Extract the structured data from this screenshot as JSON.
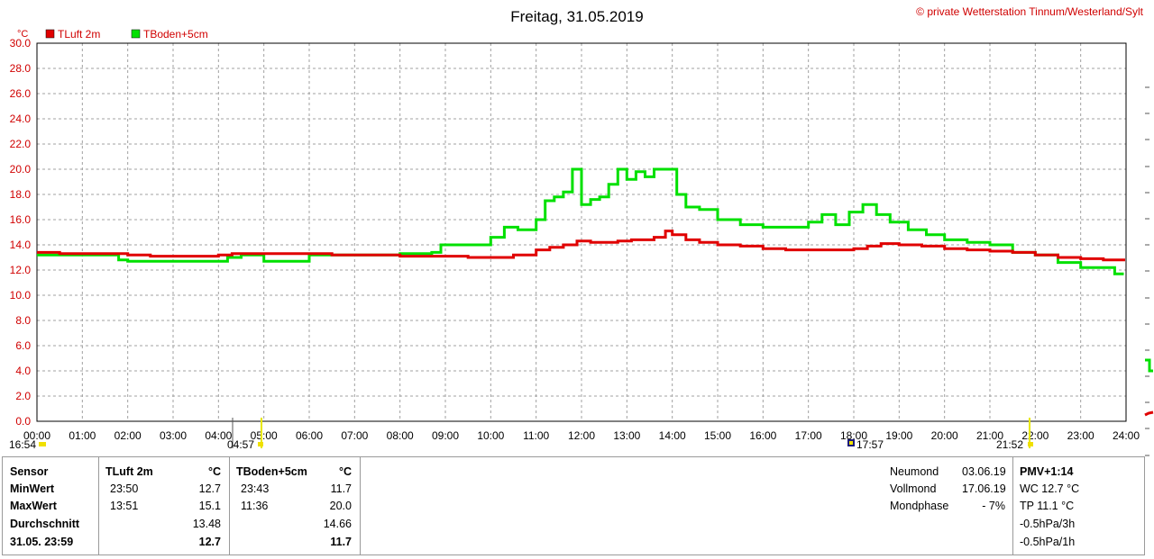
{
  "header": {
    "title": "Freitag, 31.05.2019",
    "copyright": "© private Wetterstation Tinnum/Westerland/Sylt"
  },
  "colors": {
    "series1": "#e00000",
    "series2": "#00e000",
    "axis_text": "#d00000",
    "grid": "#a0a0a0"
  },
  "chart_data": {
    "type": "line",
    "title": "Freitag, 31.05.2019",
    "ylabel": "°C",
    "ylim": [
      0,
      30
    ],
    "xlim": [
      0,
      24
    ],
    "grid": true,
    "legend_position": "top-left",
    "y_ticks": [
      "0.0",
      "2.0",
      "4.0",
      "6.0",
      "8.0",
      "10.0",
      "12.0",
      "14.0",
      "16.0",
      "18.0",
      "20.0",
      "22.0",
      "24.0",
      "26.0",
      "28.0",
      "30.0"
    ],
    "x_ticks": [
      "00:00",
      "01:00",
      "02:00",
      "03:00",
      "04:00",
      "05:00",
      "06:00",
      "07:00",
      "08:00",
      "09:00",
      "10:00",
      "11:00",
      "12:00",
      "13:00",
      "14:00",
      "15:00",
      "16:00",
      "17:00",
      "18:00",
      "19:00",
      "20:00",
      "21:00",
      "22:00",
      "23:00",
      "24:00"
    ],
    "series": [
      {
        "name": "TLuft 2m",
        "x": [
          0,
          0.5,
          1.0,
          1.5,
          2.0,
          2.5,
          3.0,
          3.5,
          4.0,
          4.3,
          4.8,
          5.5,
          6.0,
          6.5,
          7.0,
          7.5,
          8.0,
          8.5,
          9.0,
          9.5,
          10.0,
          10.5,
          11.0,
          11.3,
          11.6,
          11.9,
          12.2,
          12.5,
          12.8,
          13.1,
          13.4,
          13.6,
          13.85,
          14.0,
          14.3,
          14.6,
          15.0,
          15.5,
          16.0,
          16.5,
          17.0,
          17.5,
          18.0,
          18.3,
          18.6,
          19.0,
          19.5,
          20.0,
          20.5,
          21.0,
          21.5,
          22.0,
          22.5,
          23.0,
          23.5,
          23.95
        ],
        "values": [
          13.4,
          13.3,
          13.3,
          13.3,
          13.2,
          13.1,
          13.1,
          13.1,
          13.2,
          13.3,
          13.3,
          13.3,
          13.3,
          13.2,
          13.2,
          13.2,
          13.1,
          13.1,
          13.1,
          13.0,
          13.0,
          13.2,
          13.6,
          13.8,
          14.0,
          14.3,
          14.2,
          14.2,
          14.3,
          14.4,
          14.4,
          14.6,
          15.1,
          14.8,
          14.4,
          14.2,
          14.0,
          13.9,
          13.7,
          13.6,
          13.6,
          13.6,
          13.7,
          13.9,
          14.1,
          14.0,
          13.9,
          13.7,
          13.6,
          13.5,
          13.4,
          13.2,
          13.0,
          12.9,
          12.8,
          12.7
        ]
      },
      {
        "name": "TBoden+5cm",
        "x": [
          0,
          0.5,
          1.0,
          1.5,
          1.8,
          2.0,
          2.5,
          3.0,
          3.5,
          4.0,
          4.2,
          4.5,
          5.0,
          5.5,
          6.0,
          6.5,
          7.0,
          8.0,
          8.7,
          8.9,
          9.5,
          10.0,
          10.3,
          10.6,
          11.0,
          11.2,
          11.4,
          11.6,
          11.8,
          12.0,
          12.2,
          12.4,
          12.6,
          12.8,
          13.0,
          13.2,
          13.4,
          13.6,
          13.85,
          14.1,
          14.3,
          14.6,
          15.0,
          15.5,
          16.0,
          16.5,
          17.0,
          17.3,
          17.6,
          17.9,
          18.2,
          18.5,
          18.8,
          19.2,
          19.6,
          20.0,
          20.5,
          21.0,
          21.5,
          22.0,
          22.5,
          23.0,
          23.5,
          23.75,
          23.95
        ],
        "values": [
          13.2,
          13.2,
          13.2,
          13.2,
          12.8,
          12.7,
          12.7,
          12.7,
          12.7,
          12.7,
          13.0,
          13.2,
          12.7,
          12.7,
          13.2,
          13.2,
          13.2,
          13.3,
          13.4,
          14.0,
          14.0,
          14.6,
          15.4,
          15.2,
          16.0,
          17.5,
          17.8,
          18.2,
          20.0,
          17.2,
          17.6,
          17.8,
          18.8,
          20.0,
          19.2,
          19.8,
          19.4,
          20.0,
          20.0,
          18.0,
          17.0,
          16.8,
          16.0,
          15.6,
          15.4,
          15.4,
          15.8,
          16.4,
          15.6,
          16.6,
          17.2,
          16.4,
          15.8,
          15.2,
          14.8,
          14.4,
          14.2,
          14.0,
          13.4,
          13.2,
          12.6,
          12.2,
          12.2,
          11.7,
          11.7
        ]
      }
    ],
    "markers": [
      {
        "x_label": "04:57",
        "left_label": "16:54"
      },
      {
        "x_label": "17:57"
      },
      {
        "x_label": "21:52"
      }
    ]
  },
  "legend": [
    {
      "label": "TLuft 2m"
    },
    {
      "label": "TBoden+5cm"
    }
  ],
  "stats": {
    "row_labels": [
      "Sensor",
      "MinWert",
      "MaxWert",
      "Durchschnitt",
      "31.05. 23:59"
    ],
    "tluft": {
      "header": "TLuft 2m",
      "unit": "°C",
      "min_time": "23:50",
      "min_val": "12.7",
      "max_time": "13:51",
      "max_val": "15.1",
      "avg": "13.48",
      "current": "12.7"
    },
    "tboden": {
      "header": "TBoden+5cm",
      "unit": "°C",
      "min_time": "23:43",
      "min_val": "11.7",
      "max_time": "11:36",
      "max_val": "20.0",
      "avg": "14.66",
      "current": "11.7"
    }
  },
  "moon": {
    "neumond_label": "Neumond",
    "neumond_date": "03.06.19",
    "vollmond_label": "Vollmond",
    "vollmond_date": "17.06.19",
    "mondphase_label": "Mondphase",
    "mondphase_value": "- 7%"
  },
  "pmv": {
    "header": "PMV+1:14",
    "wc": "WC 12.7 °C",
    "tp": "TP 11.1 °C",
    "p3h": "-0.5hPa/3h",
    "p1h": "-0.5hPa/1h"
  }
}
